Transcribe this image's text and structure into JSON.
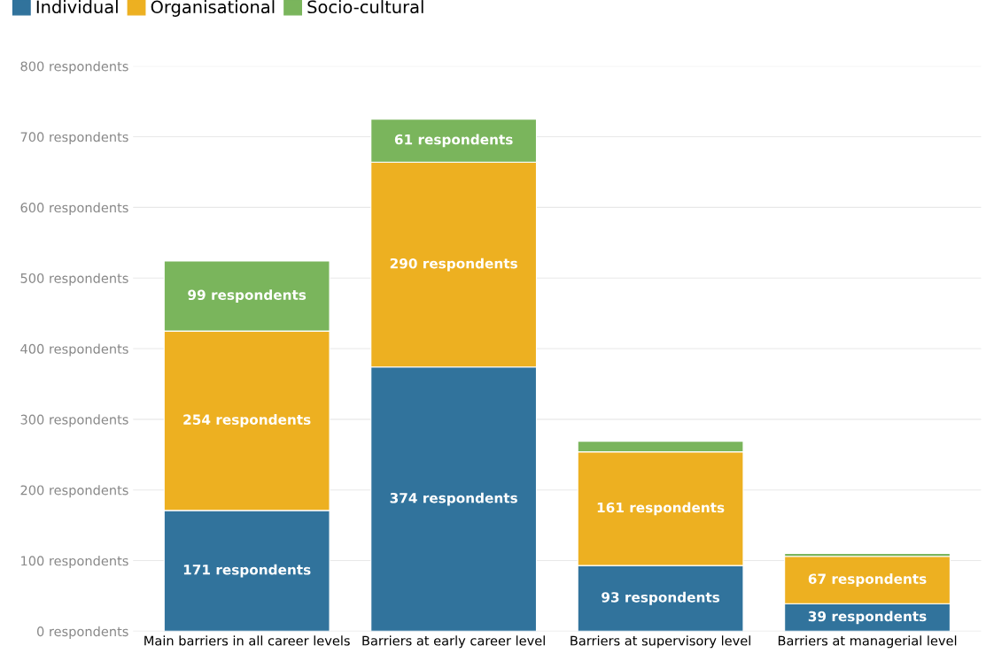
{
  "chart_data": {
    "type": "bar",
    "stacked": true,
    "categories": [
      "Main barriers in all career levels",
      "Barriers at early career level",
      "Barriers at supervisory level",
      "Barriers at managerial level"
    ],
    "series": [
      {
        "name": "Individual",
        "color": "#31739c",
        "values": [
          171,
          374,
          93,
          39
        ],
        "value_labels": [
          "171 respondents",
          "374 respondents",
          "93 respondents",
          "39 respondents"
        ]
      },
      {
        "name": "Organisational",
        "color": "#edb021",
        "values": [
          254,
          290,
          161,
          67
        ],
        "value_labels": [
          "254 respondents",
          "290 respondents",
          "161 respondents",
          "67 respondents"
        ]
      },
      {
        "name": "Socio-cultural",
        "color": "#7ab55c",
        "values": [
          99,
          61,
          15,
          4
        ],
        "value_labels": [
          "99 respondents",
          "61 respondents",
          null,
          null
        ]
      }
    ],
    "ylim": [
      0,
      800
    ],
    "yticks": [
      {
        "value": 0,
        "label": "0 respondents"
      },
      {
        "value": 100,
        "label": "100 respondents"
      },
      {
        "value": 200,
        "label": "200 respondents"
      },
      {
        "value": 300,
        "label": "300 respondents"
      },
      {
        "value": 400,
        "label": "400 respondents"
      },
      {
        "value": 500,
        "label": "500 respondents"
      },
      {
        "value": 600,
        "label": "600 respondents"
      },
      {
        "value": 700,
        "label": "700 respondents"
      },
      {
        "value": 800,
        "label": "800 respondents"
      }
    ],
    "grid": "y",
    "legend": "top left"
  }
}
